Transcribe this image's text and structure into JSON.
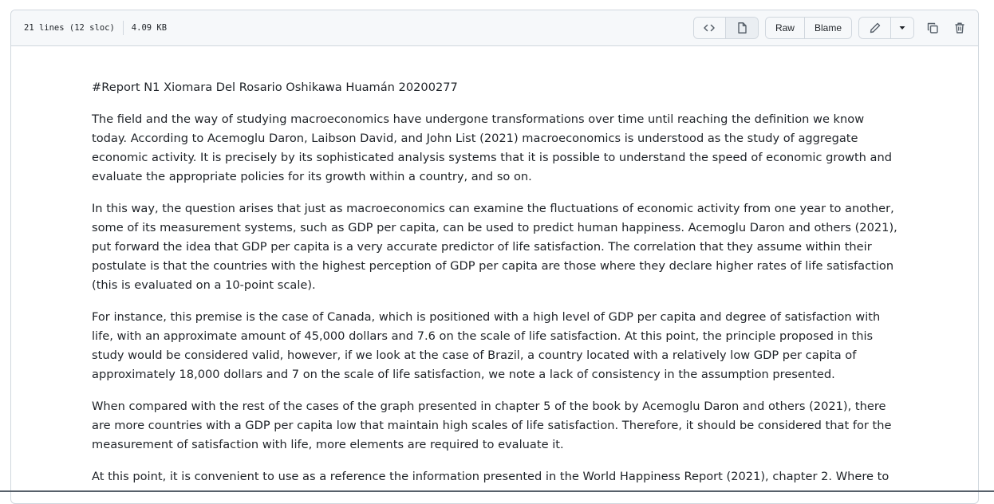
{
  "file_header": {
    "lines_info": "21 lines (12 sloc)",
    "size": "4.09 KB",
    "raw_label": "Raw",
    "blame_label": "Blame"
  },
  "content": {
    "paragraphs": [
      "#Report N1 Xiomara Del Rosario Oshikawa Huamán 20200277",
      "The field and the way of studying macroeconomics have undergone transformations over time until reaching the definition we know today. According to Acemoglu Daron, Laibson David, and John List (2021) macroeconomics is understood as the study of aggregate economic activity. It is precisely by its sophisticated analysis systems that it is possible to understand the speed of economic growth and evaluate the appropriate policies for its growth within a country, and so on.",
      "In this way, the question arises that just as macroeconomics can examine the fluctuations of economic activity from one year to another, some of its measurement systems, such as GDP per capita, can be used to predict human happiness. Acemoglu Daron and others (2021), put forward the idea that GDP per capita is a very accurate predictor of life satisfaction. The correlation that they assume within their postulate is that the countries with the highest perception of GDP per capita are those where they declare higher rates of life satisfaction (this is evaluated on a 10-point scale).",
      "For instance, this premise is the case of Canada, which is positioned with a high level of GDP per capita and degree of satisfaction with life, with an approximate amount of 45,000 dollars and 7.6 on the scale of life satisfaction. At this point, the principle proposed in this study would be considered valid, however, if we look at the case of Brazil, a country located with a relatively low GDP per capita of approximately 18,000 dollars and 7 on the scale of life satisfaction, we note a lack of consistency in the assumption presented.",
      "When compared with the rest of the cases of the graph presented in chapter 5 of the book by Acemoglu Daron and others (2021), there are more countries with a GDP per capita low that maintain high scales of life satisfaction. Therefore, it should be considered that for the measurement of satisfaction with life, more elements are required to evaluate it.",
      "At this point, it is convenient to use as a reference the information presented in the World Happiness Report (2021), chapter 2. Where to"
    ]
  },
  "icons": {
    "code": "code-icon",
    "file": "file-icon",
    "edit": "pencil-icon",
    "caret": "triangle-down-icon",
    "copy": "copy-icon",
    "delete": "trash-icon"
  },
  "colors": {
    "header_bg": "#f6f8fa",
    "border": "#d0d7de",
    "text": "#1f2328",
    "icon": "#57606a"
  }
}
